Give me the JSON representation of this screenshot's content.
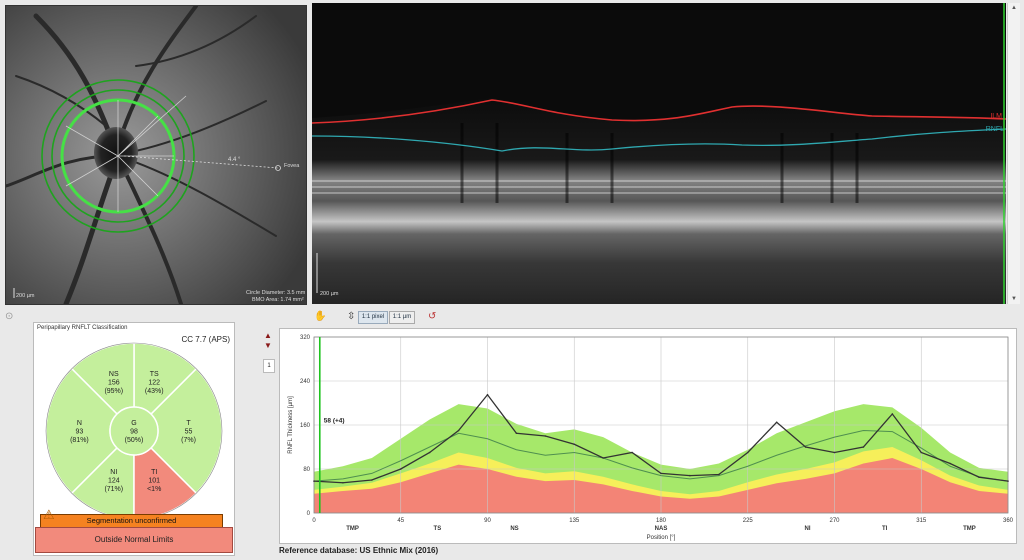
{
  "fundus": {
    "angle_label": "4.4 °",
    "fovea_label": "Fovea",
    "scale_label": "200 µm",
    "circle_diameter": "Circle Diameter: 3.5 mm",
    "bmo_area": "BMO Area: 1.74 mm²"
  },
  "oct": {
    "ilm_label": "ILM",
    "rnfl_label": "RNFL",
    "scale_label": "200 µm",
    "layer_colors": {
      "ilm": "#e03030",
      "rnfl": "#2fa8b0"
    }
  },
  "toolbar": {
    "pixel_button": "1:1 pixel",
    "micron_button": "1:1 µm"
  },
  "classification": {
    "title": "Peripapillary RNFLT Classification",
    "cc": "CC 7.7 (APS)",
    "sectors": {
      "NS": {
        "name": "NS",
        "value": "156",
        "pct": "(95%)",
        "status": "normal"
      },
      "TS": {
        "name": "TS",
        "value": "122",
        "pct": "(43%)",
        "status": "normal"
      },
      "T": {
        "name": "T",
        "value": "55",
        "pct": "(7%)",
        "status": "normal"
      },
      "TI": {
        "name": "TI",
        "value": "101",
        "pct": "<1%",
        "status": "outside"
      },
      "NI": {
        "name": "NI",
        "value": "124",
        "pct": "(71%)",
        "status": "normal"
      },
      "N": {
        "name": "N",
        "value": "93",
        "pct": "(81%)",
        "status": "normal"
      },
      "G": {
        "name": "G",
        "value": "98",
        "pct": "(50%)",
        "status": "normal"
      }
    },
    "colors": {
      "normal": "#c4ef9c",
      "outside": "#f28a7c",
      "borderline": "#f6ef7a"
    },
    "segmentation_warning": "Segmentation unconfirmed",
    "overall": "Outside Normal Limits"
  },
  "pager": {
    "page": "1"
  },
  "chart_data": {
    "type": "line",
    "ylabel": "RNFL Thickness [µm]",
    "xlabel": "Position [°]",
    "x_ticks": [
      0,
      45,
      90,
      135,
      180,
      225,
      270,
      315,
      360
    ],
    "y_ticks": [
      0,
      80,
      160,
      240,
      320
    ],
    "xlim": [
      0,
      360
    ],
    "ylim": [
      0,
      320
    ],
    "sector_labels": [
      {
        "x": 20,
        "label": "TMP"
      },
      {
        "x": 64,
        "label": "TS"
      },
      {
        "x": 104,
        "label": "NS"
      },
      {
        "x": 180,
        "label": "NAS"
      },
      {
        "x": 256,
        "label": "NI"
      },
      {
        "x": 296,
        "label": "TI"
      },
      {
        "x": 340,
        "label": "TMP"
      }
    ],
    "marker": {
      "x": 3,
      "label": "58 (+4)"
    },
    "colors": {
      "normal": "#a6e86a",
      "borderline": "#f6ef5a",
      "outside": "#f38476",
      "measured": "#333333",
      "mean": "#4f8f4f"
    },
    "x": [
      0,
      15,
      30,
      45,
      60,
      75,
      90,
      105,
      120,
      135,
      150,
      165,
      180,
      195,
      210,
      225,
      240,
      255,
      270,
      285,
      300,
      315,
      330,
      345,
      360
    ],
    "outside_upper": [
      35,
      40,
      44,
      56,
      72,
      88,
      80,
      66,
      58,
      60,
      52,
      40,
      30,
      26,
      30,
      42,
      54,
      62,
      72,
      90,
      100,
      80,
      56,
      40,
      35
    ],
    "borderline_upper": [
      42,
      48,
      55,
      72,
      90,
      110,
      100,
      82,
      72,
      76,
      66,
      52,
      40,
      34,
      40,
      56,
      70,
      80,
      92,
      112,
      120,
      96,
      68,
      50,
      42
    ],
    "normal_upper": [
      75,
      85,
      100,
      135,
      170,
      198,
      190,
      162,
      145,
      152,
      138,
      110,
      88,
      80,
      90,
      115,
      145,
      165,
      185,
      198,
      192,
      155,
      110,
      82,
      75
    ],
    "mean": [
      58,
      62,
      72,
      95,
      120,
      145,
      135,
      115,
      105,
      110,
      100,
      82,
      68,
      62,
      68,
      85,
      105,
      122,
      138,
      150,
      148,
      118,
      85,
      66,
      58
    ],
    "series": [
      {
        "values": [
          58,
          55,
          60,
          80,
          110,
          150,
          215,
          145,
          140,
          125,
          100,
          110,
          72,
          68,
          70,
          110,
          165,
          120,
          110,
          120,
          180,
          110,
          90,
          65,
          58
        ]
      }
    ]
  },
  "reference_db": "Reference database: US Ethnic Mix (2016)"
}
